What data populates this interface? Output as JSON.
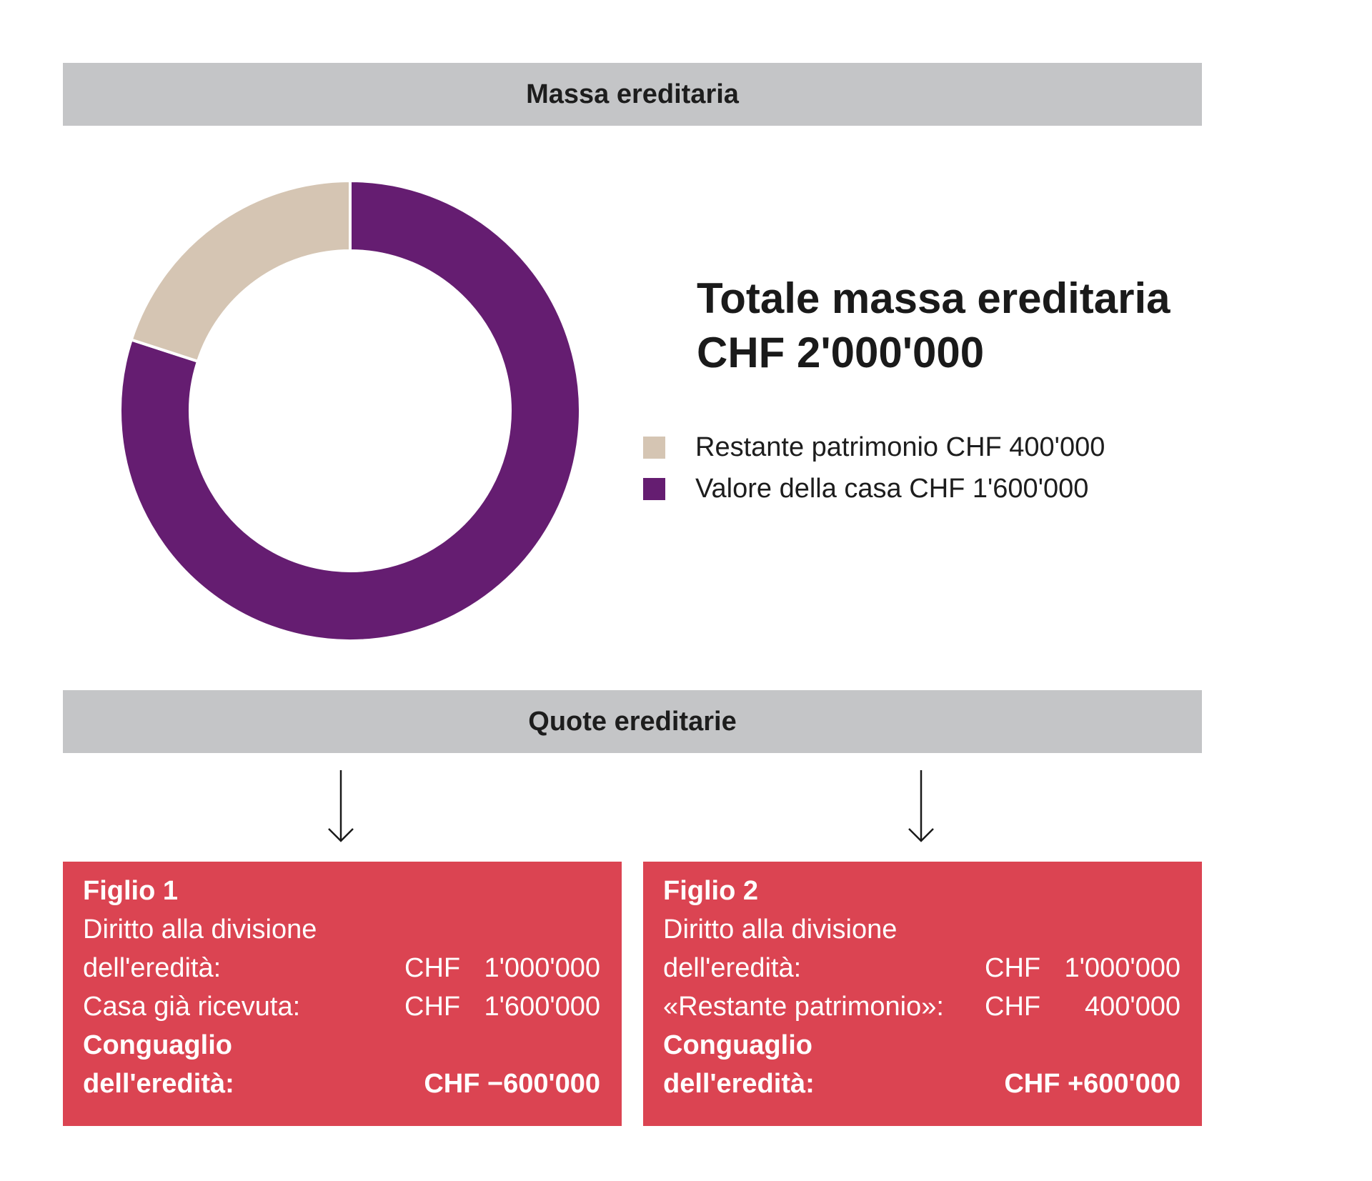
{
  "headers": {
    "estate": "Massa ereditaria",
    "shares": "Quote ereditarie"
  },
  "total": {
    "title": "Totale massa ereditaria",
    "value": "CHF 2'000'000"
  },
  "chart_data": {
    "type": "pie",
    "title": "",
    "start_angle_deg": 0,
    "hole": true,
    "slices": [
      {
        "label": "Valore della casa CHF 1'600'000",
        "value": 1600000,
        "color": "#651d71"
      },
      {
        "label": "Restante patrimonio CHF 400'000",
        "value": 400000,
        "color": "#d5c5b3"
      }
    ],
    "legend": {
      "placement": "right",
      "entries": [
        {
          "label": "Restante patrimonio CHF 400'000",
          "color": "#d5c5b3"
        },
        {
          "label": "Valore della casa CHF 1'600'000",
          "color": "#651d71"
        }
      ]
    }
  },
  "colors": {
    "header_bg": "#c4c5c7",
    "card_bg": "#db4452",
    "card_text": "#ffffff"
  },
  "cards": [
    {
      "title": "Figlio 1",
      "line1": "Diritto alla divisione",
      "line2": "dell'eredità:",
      "line2_currency": "CHF",
      "line2_amount": "1'000'000",
      "line3": "Casa già ricevuta:",
      "line3_currency": "CHF",
      "line3_amount": "1'600'000",
      "total_label1": "Conguaglio",
      "total_label2": "dell'eredità:",
      "total_amount": "CHF −600'000"
    },
    {
      "title": "Figlio 2",
      "line1": "Diritto alla divisione",
      "line2": "dell'eredità:",
      "line2_currency": "CHF",
      "line2_amount": "1'000'000",
      "line3": "«Restante patrimonio»:",
      "line3_currency": "CHF",
      "line3_amount": "400'000",
      "total_label1": "Conguaglio",
      "total_label2": "dell'eredità:",
      "total_amount": "CHF +600'000"
    }
  ]
}
